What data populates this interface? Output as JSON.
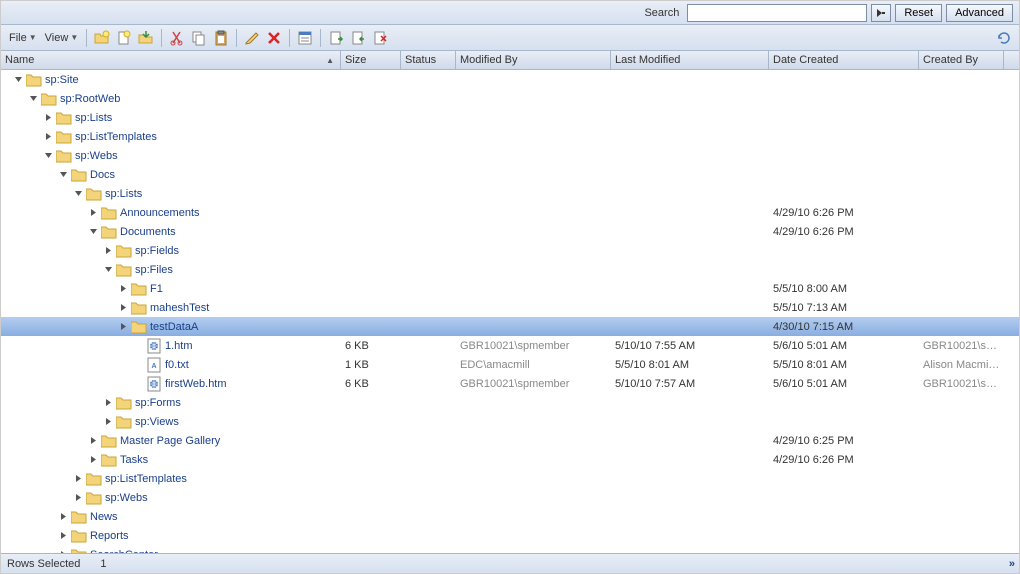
{
  "search": {
    "label": "Search",
    "placeholder": "",
    "reset": "Reset",
    "advanced": "Advanced"
  },
  "menus": {
    "file": "File",
    "view": "View"
  },
  "columns": {
    "name": "Name",
    "size": "Size",
    "status": "Status",
    "modifiedBy": "Modified By",
    "lastModified": "Last Modified",
    "dateCreated": "Date Created",
    "createdBy": "Created By"
  },
  "statusBar": {
    "label": "Rows Selected",
    "count": "1"
  },
  "colors": {
    "selectRow": "#88aee0",
    "link": "#1a3f8a",
    "gray": "#888888",
    "folderFill": "#f4d47a",
    "folderStroke": "#c9a638",
    "headerBg": "#d6e0ef"
  },
  "rows": [
    {
      "depth": 0,
      "toggle": "open",
      "icon": "folder",
      "label": "sp:Site"
    },
    {
      "depth": 1,
      "toggle": "open",
      "icon": "folder",
      "label": "sp:RootWeb"
    },
    {
      "depth": 2,
      "toggle": "closed",
      "icon": "folder",
      "label": "sp:Lists"
    },
    {
      "depth": 2,
      "toggle": "closed",
      "icon": "folder",
      "label": "sp:ListTemplates"
    },
    {
      "depth": 2,
      "toggle": "open",
      "icon": "folder",
      "label": "sp:Webs"
    },
    {
      "depth": 3,
      "toggle": "open",
      "icon": "folder",
      "label": "Docs"
    },
    {
      "depth": 4,
      "toggle": "open",
      "icon": "folder",
      "label": "sp:Lists"
    },
    {
      "depth": 5,
      "toggle": "closed",
      "icon": "folder",
      "label": "Announcements",
      "dateCreated": "4/29/10 6:26 PM"
    },
    {
      "depth": 5,
      "toggle": "open",
      "icon": "folder",
      "label": "Documents",
      "dateCreated": "4/29/10 6:26 PM"
    },
    {
      "depth": 6,
      "toggle": "closed",
      "icon": "folder",
      "label": "sp:Fields"
    },
    {
      "depth": 6,
      "toggle": "open",
      "icon": "folder",
      "label": "sp:Files"
    },
    {
      "depth": 7,
      "toggle": "closed",
      "icon": "folder",
      "label": "F1",
      "dateCreated": "5/5/10 8:00 AM"
    },
    {
      "depth": 7,
      "toggle": "closed",
      "icon": "folder",
      "label": "maheshTest",
      "dateCreated": "5/5/10 7:13 AM"
    },
    {
      "depth": 7,
      "toggle": "closed",
      "icon": "folder",
      "label": "testDataA",
      "dateCreated": "4/30/10 7:15 AM",
      "selected": true
    },
    {
      "depth": 8,
      "toggle": "none",
      "icon": "htm",
      "label": "1.htm",
      "size": "6 KB",
      "modifiedBy": "GBR10021\\spmember",
      "lastModified": "5/10/10 7:55 AM",
      "dateCreated": "5/6/10 5:01 AM",
      "createdBy": "GBR10021\\sp..."
    },
    {
      "depth": 8,
      "toggle": "none",
      "icon": "txt",
      "label": "f0.txt",
      "size": "1 KB",
      "modifiedBy": "EDC\\amacmill",
      "lastModified": "5/5/10 8:01 AM",
      "dateCreated": "5/5/10 8:01 AM",
      "createdBy": "Alison Macmillan"
    },
    {
      "depth": 8,
      "toggle": "none",
      "icon": "htm",
      "label": "firstWeb.htm",
      "size": "6 KB",
      "modifiedBy": "GBR10021\\spmember",
      "lastModified": "5/10/10 7:57 AM",
      "dateCreated": "5/6/10 5:01 AM",
      "createdBy": "GBR10021\\sp..."
    },
    {
      "depth": 6,
      "toggle": "closed",
      "icon": "folder",
      "label": "sp:Forms"
    },
    {
      "depth": 6,
      "toggle": "closed",
      "icon": "folder",
      "label": "sp:Views"
    },
    {
      "depth": 5,
      "toggle": "closed",
      "icon": "folder",
      "label": "Master Page Gallery",
      "dateCreated": "4/29/10 6:25 PM"
    },
    {
      "depth": 5,
      "toggle": "closed",
      "icon": "folder",
      "label": "Tasks",
      "dateCreated": "4/29/10 6:26 PM"
    },
    {
      "depth": 4,
      "toggle": "closed",
      "icon": "folder",
      "label": "sp:ListTemplates"
    },
    {
      "depth": 4,
      "toggle": "closed",
      "icon": "folder",
      "label": "sp:Webs"
    },
    {
      "depth": 3,
      "toggle": "closed",
      "icon": "folder",
      "label": "News"
    },
    {
      "depth": 3,
      "toggle": "closed",
      "icon": "folder",
      "label": "Reports"
    },
    {
      "depth": 3,
      "toggle": "closed",
      "icon": "folder",
      "label": "SearchCenter"
    }
  ]
}
